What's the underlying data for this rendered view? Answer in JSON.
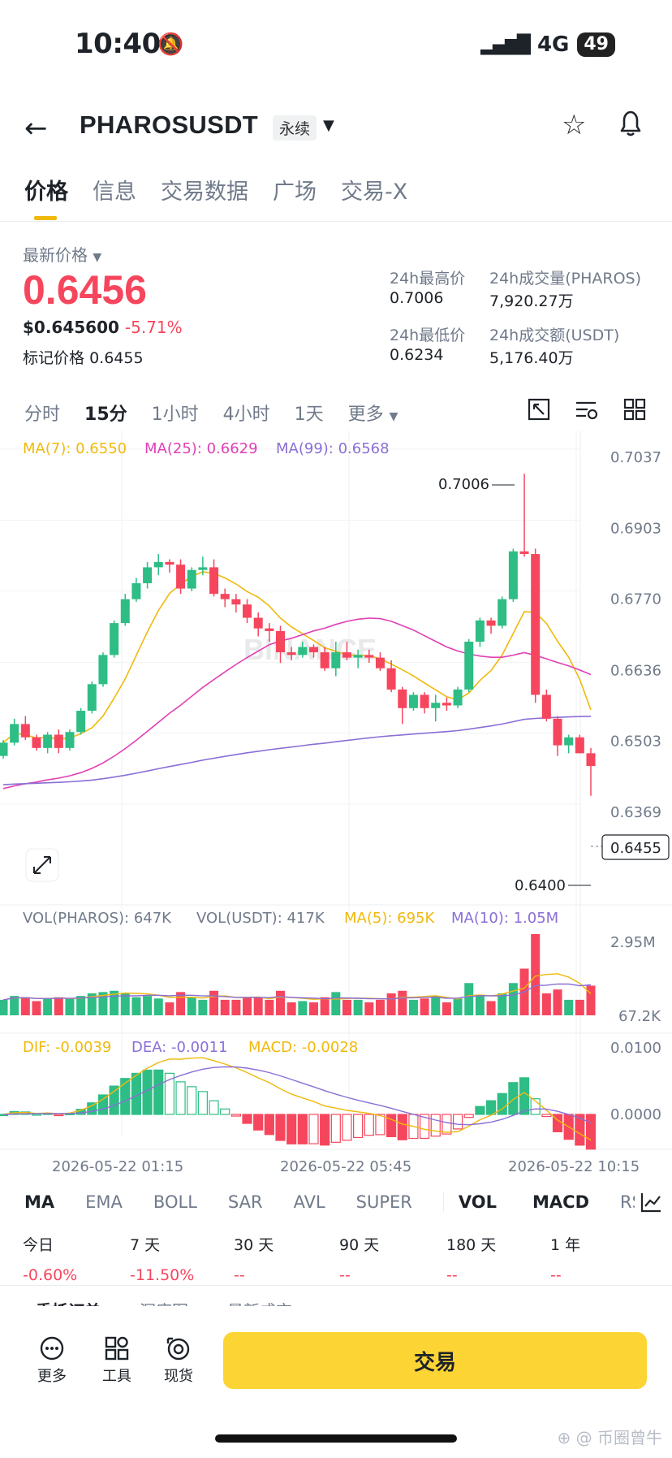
{
  "status": {
    "time": "10:40",
    "network": "4G",
    "battery": "49"
  },
  "header": {
    "symbol": "PHAROSUSDT",
    "tag": "永续"
  },
  "tabs": [
    {
      "label": "价格",
      "active": true
    },
    {
      "label": "信息"
    },
    {
      "label": "交易数据"
    },
    {
      "label": "广场"
    },
    {
      "label": "交易-X"
    }
  ],
  "price": {
    "latest_label": "最新价格",
    "latest": "0.6456",
    "usd": "$0.645600",
    "change": "-5.71%",
    "mark_label": "标记价格",
    "mark": "0.6455",
    "color_down": "#f6465d",
    "color_up": "#2ebd85"
  },
  "stats": {
    "high_label": "24h最高价",
    "high": "0.7006",
    "vol_label": "24h成交量(PHAROS)",
    "vol": "7,920.27万",
    "low_label": "24h最低价",
    "low": "0.6234",
    "turnover_label": "24h成交额(USDT)",
    "turnover": "5,176.40万"
  },
  "intervals": [
    "分时",
    "15分",
    "1小时",
    "4小时",
    "1天",
    "更多"
  ],
  "active_interval": "15分",
  "chart_data": {
    "type": "candlestick",
    "ma_legend": {
      "ma7": "MA(7): 0.6550",
      "ma25": "MA(25): 0.6629",
      "ma99": "MA(99): 0.6568"
    },
    "y_ticks": [
      "0.7037",
      "0.6903",
      "0.6770",
      "0.6636",
      "0.6503",
      "0.6369"
    ],
    "y_tick_values": [
      0.7037,
      0.6903,
      0.677,
      0.6636,
      0.6503,
      0.6369
    ],
    "high_label": "0.7006",
    "low_label": "0.6400",
    "current_label": "0.6455",
    "watermark": "BINANCE",
    "candles": [
      [
        0.6475,
        0.65,
        0.647,
        0.6505
      ],
      [
        0.65,
        0.6535,
        0.6495,
        0.6545
      ],
      [
        0.6535,
        0.651,
        0.6505,
        0.655
      ],
      [
        0.651,
        0.649,
        0.6485,
        0.6515
      ],
      [
        0.649,
        0.6515,
        0.648,
        0.652
      ],
      [
        0.6515,
        0.649,
        0.648,
        0.6525
      ],
      [
        0.649,
        0.652,
        0.6485,
        0.6525
      ],
      [
        0.652,
        0.656,
        0.6515,
        0.6565
      ],
      [
        0.656,
        0.661,
        0.6555,
        0.6615
      ],
      [
        0.661,
        0.6665,
        0.6605,
        0.667
      ],
      [
        0.6665,
        0.6725,
        0.666,
        0.673
      ],
      [
        0.6725,
        0.677,
        0.672,
        0.678
      ],
      [
        0.677,
        0.68,
        0.6765,
        0.681
      ],
      [
        0.68,
        0.683,
        0.679,
        0.684
      ],
      [
        0.683,
        0.684,
        0.6815,
        0.6855
      ],
      [
        0.684,
        0.6835,
        0.682,
        0.6845
      ],
      [
        0.6835,
        0.679,
        0.678,
        0.6845
      ],
      [
        0.679,
        0.6825,
        0.6785,
        0.683
      ],
      [
        0.6825,
        0.683,
        0.6815,
        0.685
      ],
      [
        0.683,
        0.678,
        0.6775,
        0.6845
      ],
      [
        0.678,
        0.677,
        0.6755,
        0.679
      ],
      [
        0.677,
        0.676,
        0.6745,
        0.678
      ],
      [
        0.676,
        0.6735,
        0.6725,
        0.677
      ],
      [
        0.6735,
        0.6715,
        0.67,
        0.6745
      ],
      [
        0.6715,
        0.671,
        0.669,
        0.6725
      ],
      [
        0.671,
        0.667,
        0.665,
        0.672
      ],
      [
        0.667,
        0.6665,
        0.6655,
        0.668
      ],
      [
        0.6665,
        0.668,
        0.666,
        0.669
      ],
      [
        0.668,
        0.667,
        0.666,
        0.6685
      ],
      [
        0.667,
        0.664,
        0.6635,
        0.668
      ],
      [
        0.664,
        0.667,
        0.6625,
        0.669
      ],
      [
        0.667,
        0.666,
        0.6655,
        0.669
      ],
      [
        0.666,
        0.6665,
        0.664,
        0.6675
      ],
      [
        0.6665,
        0.666,
        0.665,
        0.6675
      ],
      [
        0.666,
        0.664,
        0.6635,
        0.667
      ],
      [
        0.664,
        0.66,
        0.6595,
        0.6655
      ],
      [
        0.66,
        0.6565,
        0.6535,
        0.6605
      ],
      [
        0.6565,
        0.659,
        0.656,
        0.6595
      ],
      [
        0.659,
        0.6565,
        0.6555,
        0.6595
      ],
      [
        0.6565,
        0.6575,
        0.654,
        0.659
      ],
      [
        0.6575,
        0.657,
        0.656,
        0.6585
      ],
      [
        0.657,
        0.66,
        0.6565,
        0.6605
      ],
      [
        0.66,
        0.669,
        0.6595,
        0.6695
      ],
      [
        0.669,
        0.673,
        0.668,
        0.6735
      ],
      [
        0.673,
        0.672,
        0.6705,
        0.6735
      ],
      [
        0.672,
        0.677,
        0.6715,
        0.6775
      ],
      [
        0.677,
        0.686,
        0.6765,
        0.6865
      ],
      [
        0.686,
        0.6855,
        0.685,
        0.7006
      ],
      [
        0.6855,
        0.659,
        0.6575,
        0.6865
      ],
      [
        0.659,
        0.6545,
        0.654,
        0.66
      ],
      [
        0.6545,
        0.6495,
        0.6475,
        0.655
      ],
      [
        0.6495,
        0.651,
        0.648,
        0.6515
      ],
      [
        0.651,
        0.648,
        0.648,
        0.6515
      ],
      [
        0.648,
        0.6456,
        0.64,
        0.649
      ]
    ],
    "volume_legend": {
      "pharos": "VOL(PHAROS): 647K",
      "usdt": "VOL(USDT): 417K",
      "ma5": "MA(5): 695K",
      "ma10": "MA(10): 1.05M"
    },
    "volume_ticks": [
      "2.95M",
      "67.2K"
    ],
    "macd_legend": {
      "dif": "DIF: -0.0039",
      "dea": "DEA: -0.0011",
      "macd": "MACD: -0.0028"
    },
    "macd_ticks": [
      "0.0100",
      "0.0000"
    ],
    "x_ticks": [
      "2026-05-22 01:15",
      "2026-05-22 05:45",
      "2026-05-22 10:15"
    ],
    "colors": {
      "ma7": "#f0b90b",
      "ma25": "#e040b5",
      "ma99": "#8a6fd6",
      "up": "#2ebd85",
      "down": "#f6465d"
    }
  },
  "indicators": [
    "MA",
    "EMA",
    "BOLL",
    "SAR",
    "AVL",
    "SUPER",
    "VOL",
    "MACD",
    "RSI"
  ],
  "performance": [
    {
      "label": "今日",
      "value": "-0.60%"
    },
    {
      "label": "7 天",
      "value": "-11.50%"
    },
    {
      "label": "30 天",
      "value": "--"
    },
    {
      "label": "90 天",
      "value": "--"
    },
    {
      "label": "180 天",
      "value": "--"
    },
    {
      "label": "1 年",
      "value": "--"
    }
  ],
  "bottom_tabs": [
    "委托订单",
    "深度图",
    "最新成交"
  ],
  "bottom": {
    "more": "更多",
    "tools": "工具",
    "spot": "现货",
    "trade": "交易"
  },
  "watermark_text": "币圈曾牛"
}
